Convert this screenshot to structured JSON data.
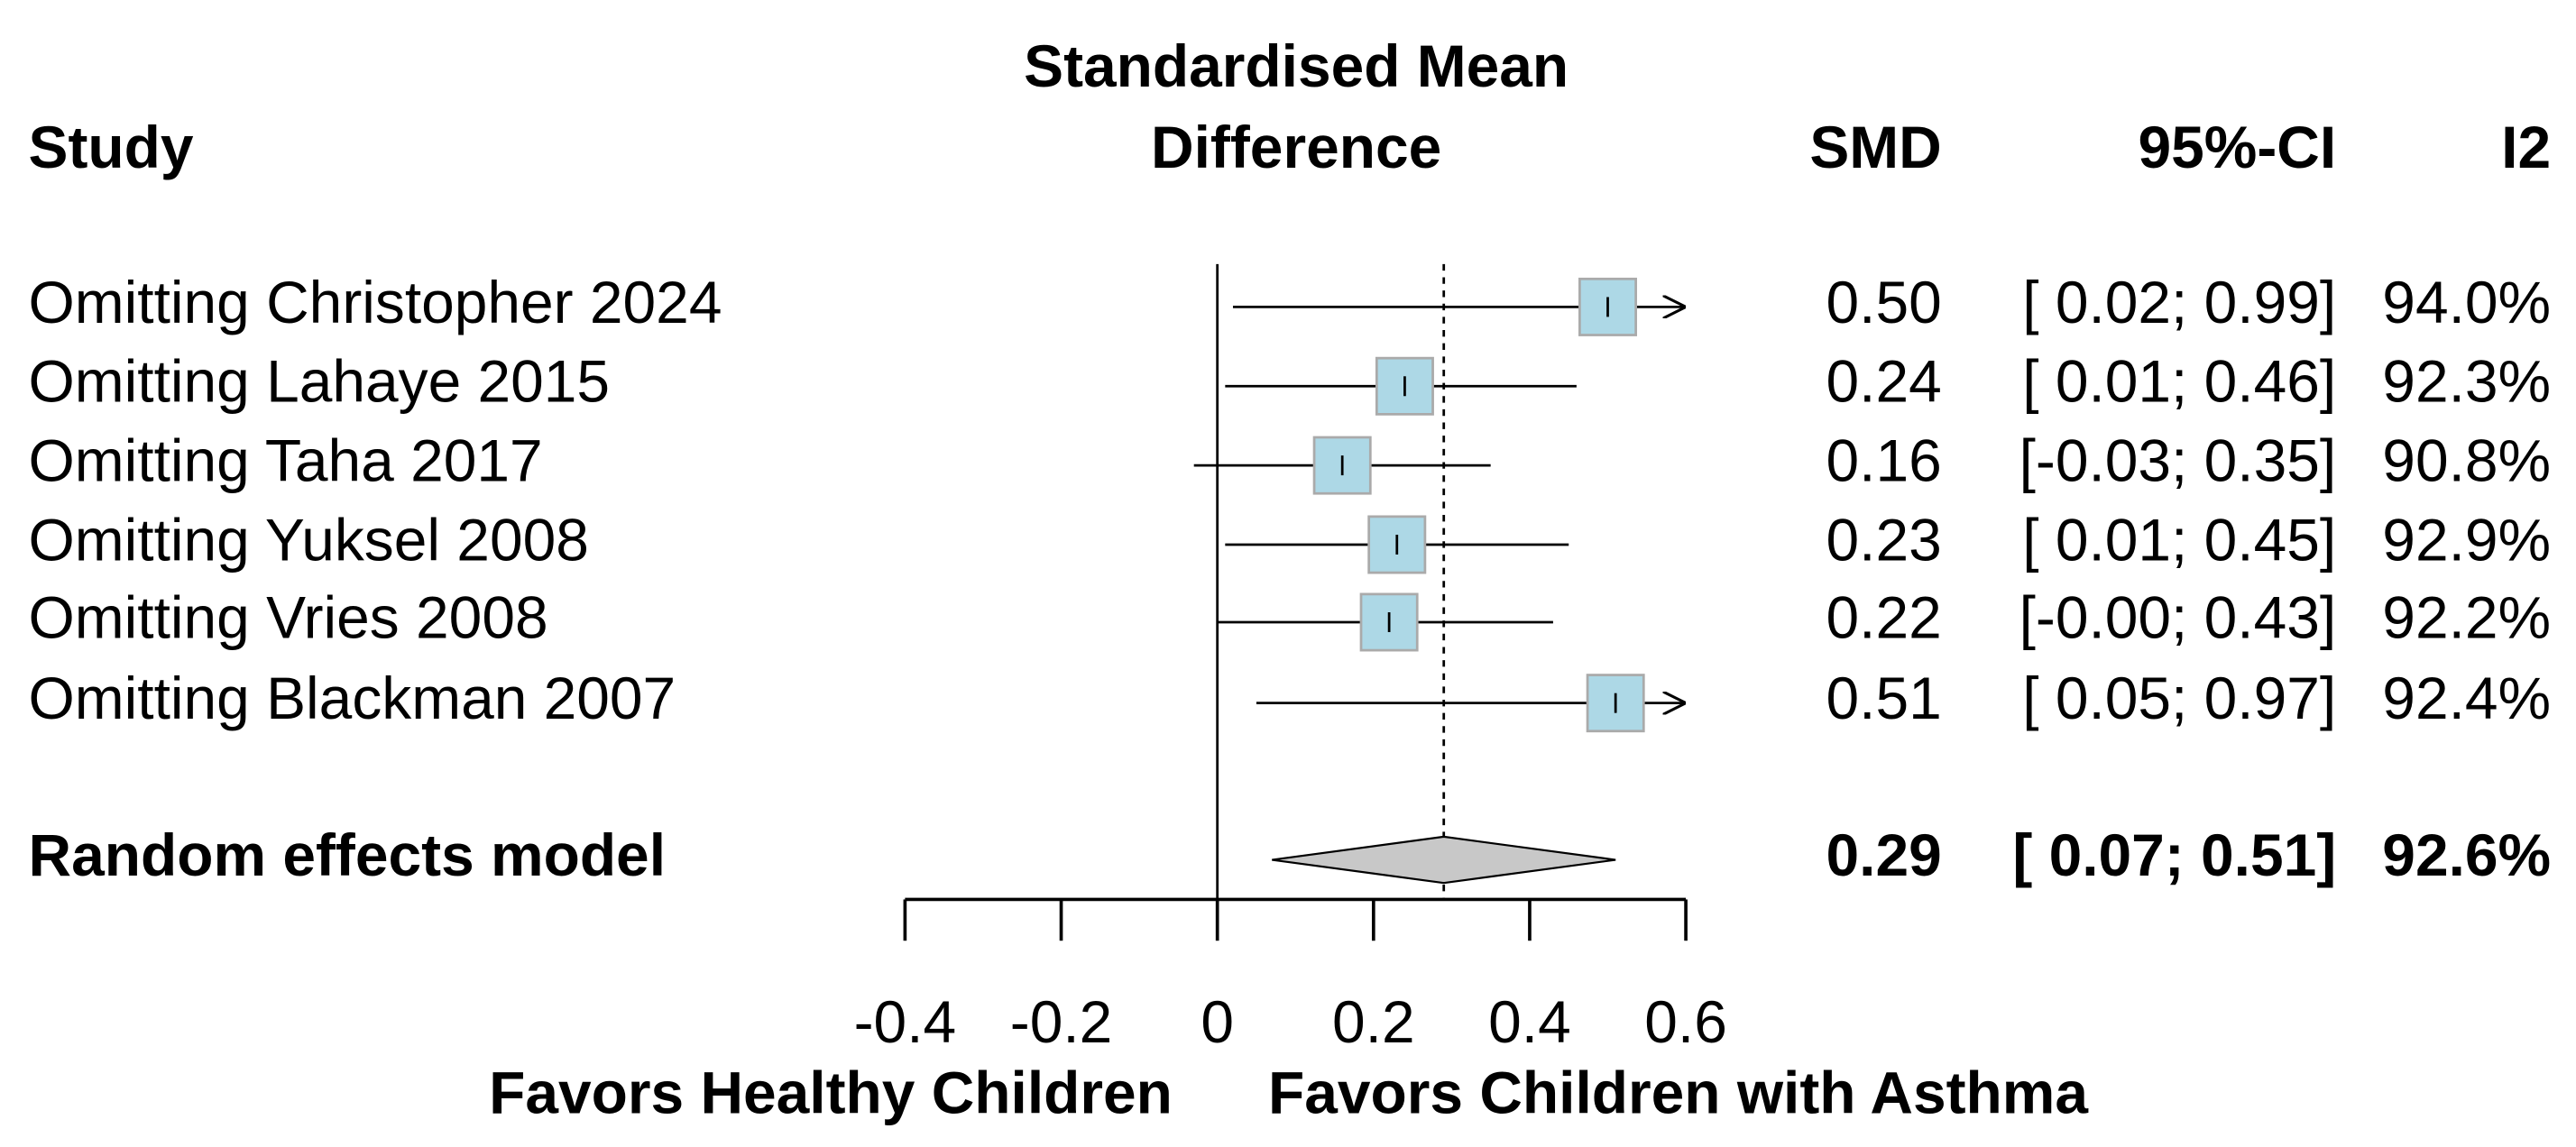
{
  "chart_data": {
    "type": "forest",
    "title": [
      "Standardised Mean",
      "Difference"
    ],
    "column_headers": [
      "Study",
      "SMD",
      "95%-CI",
      "I2"
    ],
    "categories": [
      "Omitting Christopher 2024",
      "Omitting Lahaye 2015",
      "Omitting Taha 2017",
      "Omitting Yuksel 2008",
      "Omitting Vries 2008",
      "Omitting Blackman 2007"
    ],
    "values": [
      0.5,
      0.24,
      0.16,
      0.23,
      0.22,
      0.51
    ],
    "value_labels": [
      "0.50",
      "0.24",
      "0.16",
      "0.23",
      "0.22",
      "0.51"
    ],
    "lower": [
      0.02,
      0.01,
      -0.03,
      0.01,
      -0.0,
      0.05
    ],
    "upper": [
      0.99,
      0.46,
      0.35,
      0.45,
      0.43,
      0.97
    ],
    "ci_labels": [
      "[ 0.02; 0.99]",
      "[ 0.01; 0.46]",
      "[-0.03; 0.35]",
      "[ 0.01; 0.45]",
      "[-0.00; 0.43]",
      "[ 0.05; 0.97]"
    ],
    "i2": [
      94.0,
      92.3,
      90.8,
      92.9,
      92.2,
      92.4
    ],
    "i2_labels": [
      "94.0%",
      "92.3%",
      "90.8%",
      "92.9%",
      "92.2%",
      "92.4%"
    ],
    "summary": {
      "name": "Random effects model",
      "value": 0.29,
      "value_label": "0.29",
      "lower": 0.07,
      "upper": 0.51,
      "ci_label": "[ 0.07; 0.51]",
      "i2": 92.6,
      "i2_label": "92.6%"
    },
    "color": "#add8e6",
    "summary_color": "#c8c8c8",
    "xlim": [
      -0.4,
      0.6
    ],
    "xticks": [
      -0.4,
      -0.2,
      0,
      0.2,
      0.4,
      0.6
    ],
    "xlabel_left": "Favors Healthy Children",
    "xlabel_right": "Favors Children with Asthma"
  }
}
